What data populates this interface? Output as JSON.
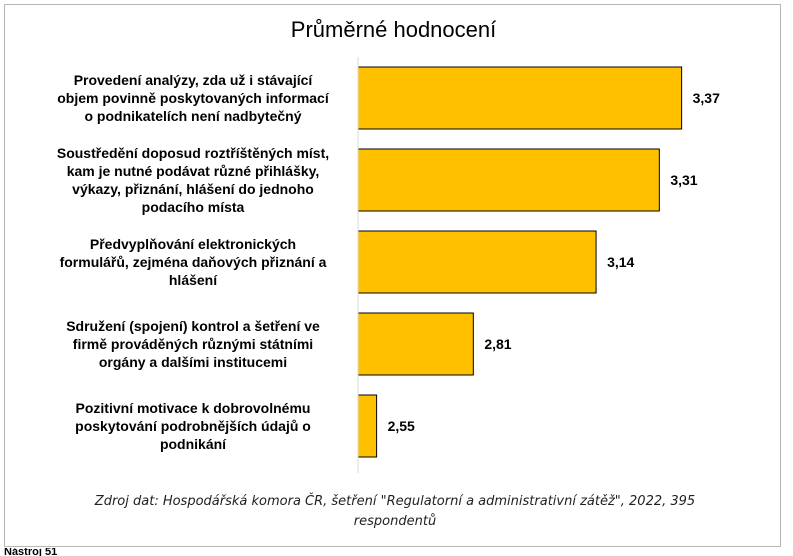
{
  "chart_data": {
    "type": "bar",
    "orientation": "horizontal",
    "title": "Průměrné hodnocení",
    "categories": [
      "Provedení analýzy, zda už i stávající objem povinně poskytovaných informací o podnikatelích není nadbytečný",
      "Soustředění doposud roztříštěných míst, kam je nutné podávat různé přihlášky, výkazy, přiznání, hlášení do jednoho podacího místa",
      "Předvyplňování elektronických formulářů, zejména daňových přiznání a hlášení",
      "Sdružení (spojení) kontrol a šetření ve firmě prováděných různými státními orgány a dalšími institucemi",
      "Pozitivní motivace k dobrovolnému poskytování podrobnějších údajů o podnikání"
    ],
    "category_lines": [
      [
        "Provedení analýzy, zda už i stávající",
        "objem povinně poskytovaných informací",
        "o podnikatelích není nadbytečný"
      ],
      [
        "Soustředění doposud roztříštěných míst,",
        "kam je nutné podávat různé přihlášky,",
        "výkazy, přiznání, hlášení do jednoho",
        "podacího místa"
      ],
      [
        "Předvyplňování elektronických",
        "formulářů, zejména daňových přiznání a",
        "hlášení"
      ],
      [
        "Sdružení (spojení) kontrol a šetření ve",
        "firmě prováděných různými státními",
        "orgány a dalšími institucemi"
      ],
      [
        "Pozitivní motivace k dobrovolnému",
        "poskytování podrobnějších údajů o",
        "podnikání"
      ]
    ],
    "values": [
      3.37,
      3.31,
      3.14,
      2.81,
      2.55
    ],
    "value_labels": [
      "3,37",
      "3,31",
      "3,14",
      "2,81",
      "2,55"
    ],
    "xlim": [
      2.5,
      3.5
    ],
    "bar_color": "#FFC000",
    "bar_edge_color": "#000000",
    "axis_color": "#d9d9d9",
    "grid": false,
    "legend": "none"
  },
  "source": {
    "line1": "Zdroj dat: Hospodářská komora ČR, šetření \"Regulatorní a administrativní zátěž\", 2022, 395",
    "line2": "respondentů"
  },
  "footer_text": "Nástroj 51"
}
